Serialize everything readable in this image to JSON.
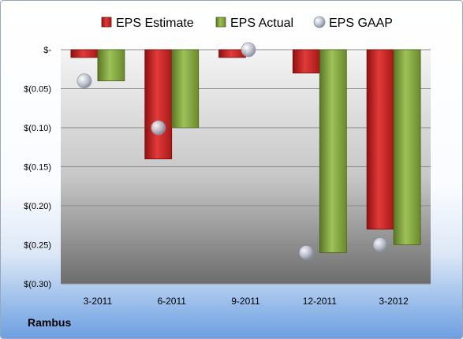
{
  "company": "Rambus",
  "colors": {
    "estimate": "#d42a2a",
    "actual": "#86a63c",
    "gaap": "#c3c8d4"
  },
  "chart_data": {
    "type": "bar",
    "categories": [
      "3-2011",
      "6-2011",
      "9-2011",
      "12-2011",
      "3-2012"
    ],
    "series": [
      {
        "name": "EPS Estimate",
        "values": [
          -0.01,
          -0.14,
          -0.01,
          -0.03,
          -0.23
        ]
      },
      {
        "name": "EPS Actual",
        "values": [
          -0.04,
          -0.1,
          0.0,
          -0.26,
          -0.25
        ]
      },
      {
        "name": "EPS GAAP",
        "values": [
          -0.04,
          -0.1,
          0.0,
          -0.26,
          -0.25
        ],
        "marker": "circle"
      }
    ],
    "ylim": [
      -0.3,
      0.0
    ],
    "yticks": [
      0,
      -0.05,
      -0.1,
      -0.15,
      -0.2,
      -0.25,
      -0.3
    ],
    "ytick_labels": [
      "$-",
      "$(0.05)",
      "$(0.10)",
      "$(0.15)",
      "$(0.20)",
      "$(0.25)",
      "$(0.30)"
    ],
    "legend_position": "top",
    "grid": true
  }
}
